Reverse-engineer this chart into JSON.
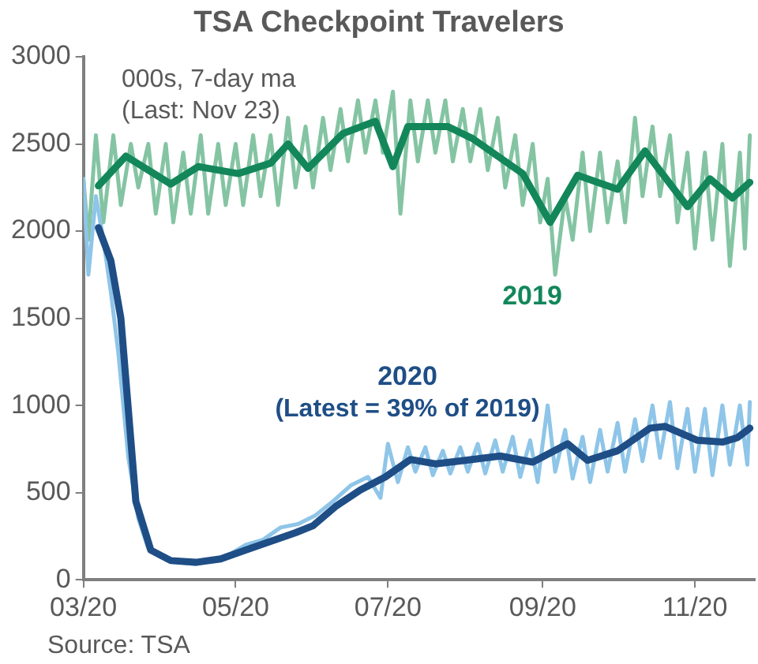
{
  "chart_data": {
    "type": "line",
    "title": "TSA Checkpoint Travelers",
    "annotations": [
      "000s, 7-day ma",
      "(Last: Nov 23)",
      "(Latest = 39% of 2019)",
      "Source: TSA"
    ],
    "xlim": [
      "2020-03-01",
      "2020-11-25"
    ],
    "xticks": [
      {
        "value": "2020-03-01",
        "label": "03/20"
      },
      {
        "value": "2020-05-01",
        "label": "05/20"
      },
      {
        "value": "2020-07-01",
        "label": "07/20"
      },
      {
        "value": "2020-09-01",
        "label": "09/20"
      },
      {
        "value": "2020-11-01",
        "label": "11/20"
      }
    ],
    "ylim": [
      0,
      3000
    ],
    "yticks": [
      0,
      500,
      1000,
      1500,
      2000,
      2500,
      3000
    ],
    "grid": false,
    "legend": false,
    "marker": "none",
    "line_style": "solid",
    "series": [
      {
        "color": "#84c4a3",
        "x": [
          "2020-03-01",
          "2020-03-03",
          "2020-03-06",
          "2020-03-09",
          "2020-03-13",
          "2020-03-16",
          "2020-03-20",
          "2020-03-23",
          "2020-03-27",
          "2020-03-30",
          "2020-04-03",
          "2020-04-06",
          "2020-04-10",
          "2020-04-13",
          "2020-04-17",
          "2020-04-20",
          "2020-04-24",
          "2020-04-27",
          "2020-05-01",
          "2020-05-04",
          "2020-05-08",
          "2020-05-11",
          "2020-05-15",
          "2020-05-18",
          "2020-05-22",
          "2020-05-25",
          "2020-05-29",
          "2020-06-01",
          "2020-06-05",
          "2020-06-08",
          "2020-06-12",
          "2020-06-15",
          "2020-06-19",
          "2020-06-22",
          "2020-06-26",
          "2020-06-29",
          "2020-07-03",
          "2020-07-06",
          "2020-07-10",
          "2020-07-13",
          "2020-07-17",
          "2020-07-20",
          "2020-07-24",
          "2020-07-27",
          "2020-07-31",
          "2020-08-03",
          "2020-08-07",
          "2020-08-10",
          "2020-08-14",
          "2020-08-17",
          "2020-08-21",
          "2020-08-24",
          "2020-08-28",
          "2020-08-31",
          "2020-09-03",
          "2020-09-06",
          "2020-09-10",
          "2020-09-13",
          "2020-09-17",
          "2020-09-20",
          "2020-09-24",
          "2020-09-27",
          "2020-10-01",
          "2020-10-04",
          "2020-10-08",
          "2020-10-11",
          "2020-10-15",
          "2020-10-18",
          "2020-10-22",
          "2020-10-25",
          "2020-10-29",
          "2020-11-01",
          "2020-11-05",
          "2020-11-08",
          "2020-11-12",
          "2020-11-15",
          "2020-11-19",
          "2020-11-21",
          "2020-11-23"
        ],
        "values": [
          2300,
          1950,
          2550,
          2050,
          2550,
          2150,
          2500,
          2250,
          2500,
          2100,
          2500,
          2050,
          2450,
          2100,
          2550,
          2100,
          2500,
          2150,
          2500,
          2150,
          2550,
          2200,
          2550,
          2150,
          2650,
          2250,
          2600,
          2250,
          2650,
          2350,
          2700,
          2400,
          2750,
          2450,
          2750,
          2450,
          2800,
          2100,
          2750,
          2400,
          2750,
          2450,
          2750,
          2400,
          2700,
          2400,
          2700,
          2350,
          2650,
          2250,
          2550,
          2150,
          2500,
          2050,
          2300,
          1750,
          2200,
          1950,
          2450,
          2000,
          2450,
          2050,
          2400,
          2050,
          2650,
          2200,
          2600,
          2200,
          2550,
          2050,
          2450,
          1900,
          2450,
          1950,
          2500,
          1800,
          2450,
          1900,
          2550
        ]
      },
      {
        "color": "#8ec5e8",
        "x": [
          "2020-03-01",
          "2020-03-03",
          "2020-03-06",
          "2020-03-09",
          "2020-03-12",
          "2020-03-15",
          "2020-03-19",
          "2020-03-23",
          "2020-03-27",
          "2020-04-01",
          "2020-04-08",
          "2020-04-15",
          "2020-04-22",
          "2020-04-29",
          "2020-05-05",
          "2020-05-12",
          "2020-05-19",
          "2020-05-26",
          "2020-06-02",
          "2020-06-09",
          "2020-06-16",
          "2020-06-23",
          "2020-06-28",
          "2020-07-01",
          "2020-07-05",
          "2020-07-09",
          "2020-07-12",
          "2020-07-16",
          "2020-07-19",
          "2020-07-23",
          "2020-07-26",
          "2020-07-30",
          "2020-08-02",
          "2020-08-06",
          "2020-08-09",
          "2020-08-13",
          "2020-08-16",
          "2020-08-20",
          "2020-08-23",
          "2020-08-27",
          "2020-08-30",
          "2020-09-03",
          "2020-09-06",
          "2020-09-10",
          "2020-09-13",
          "2020-09-17",
          "2020-09-20",
          "2020-09-24",
          "2020-09-27",
          "2020-10-01",
          "2020-10-04",
          "2020-10-08",
          "2020-10-11",
          "2020-10-15",
          "2020-10-18",
          "2020-10-22",
          "2020-10-25",
          "2020-10-29",
          "2020-11-01",
          "2020-11-05",
          "2020-11-08",
          "2020-11-12",
          "2020-11-15",
          "2020-11-19",
          "2020-11-22",
          "2020-11-23"
        ],
        "values": [
          2300,
          1750,
          2200,
          1950,
          1650,
          1300,
          700,
          350,
          180,
          130,
          100,
          90,
          110,
          150,
          200,
          230,
          300,
          320,
          370,
          450,
          540,
          590,
          470,
          780,
          560,
          760,
          620,
          760,
          600,
          740,
          610,
          760,
          620,
          780,
          610,
          800,
          620,
          820,
          590,
          800,
          560,
          1000,
          620,
          860,
          580,
          820,
          560,
          860,
          620,
          900,
          620,
          920,
          680,
          1000,
          700,
          1020,
          640,
          980,
          620,
          980,
          600,
          1000,
          660,
          1000,
          660,
          1020
        ]
      },
      {
        "name": "2019",
        "color": "#13875a",
        "x": [
          "2020-03-07",
          "2020-03-18",
          "2020-04-05",
          "2020-04-16",
          "2020-05-02",
          "2020-05-15",
          "2020-05-22",
          "2020-05-30",
          "2020-06-13",
          "2020-06-26",
          "2020-07-03",
          "2020-07-09",
          "2020-07-25",
          "2020-08-04",
          "2020-08-24",
          "2020-09-04",
          "2020-09-15",
          "2020-10-01",
          "2020-10-12",
          "2020-10-29",
          "2020-11-07",
          "2020-11-16",
          "2020-11-23"
        ],
        "values": [
          2260,
          2430,
          2270,
          2370,
          2330,
          2390,
          2500,
          2360,
          2560,
          2630,
          2370,
          2600,
          2600,
          2530,
          2330,
          2050,
          2320,
          2240,
          2460,
          2140,
          2300,
          2190,
          2280
        ]
      },
      {
        "name": "2020",
        "color": "#1f4e86",
        "x": [
          "2020-03-07",
          "2020-03-12",
          "2020-03-16",
          "2020-03-22",
          "2020-03-28",
          "2020-04-05",
          "2020-04-15",
          "2020-04-25",
          "2020-05-05",
          "2020-05-15",
          "2020-05-25",
          "2020-06-01",
          "2020-06-10",
          "2020-06-20",
          "2020-06-30",
          "2020-07-10",
          "2020-07-20",
          "2020-08-01",
          "2020-08-15",
          "2020-08-28",
          "2020-09-11",
          "2020-09-19",
          "2020-10-01",
          "2020-10-14",
          "2020-10-20",
          "2020-11-02",
          "2020-11-12",
          "2020-11-18",
          "2020-11-23"
        ],
        "values": [
          2020,
          1830,
          1500,
          450,
          170,
          110,
          100,
          120,
          170,
          220,
          270,
          310,
          420,
          515,
          590,
          690,
          665,
          685,
          710,
          675,
          780,
          685,
          740,
          870,
          880,
          800,
          790,
          815,
          870
        ]
      }
    ]
  }
}
